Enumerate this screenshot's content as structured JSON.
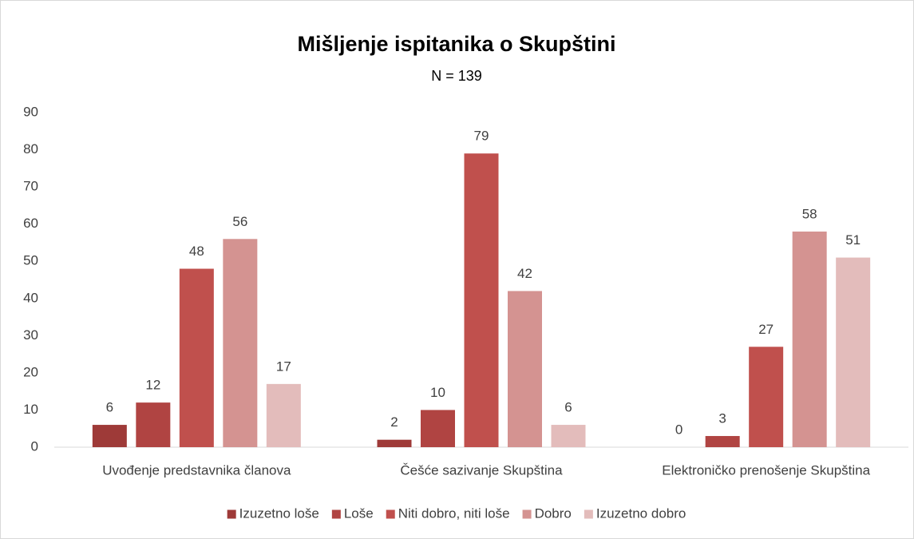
{
  "chart_data": {
    "type": "bar",
    "title": "Mišljenje ispitanika o Skupštini",
    "subtitle": "N = 139",
    "categories": [
      "Uvođenje predstavnika članova",
      "Češće sazivanje Skupština",
      "Elektroničko prenošenje Skupština"
    ],
    "series": [
      {
        "name": "Izuzetno loše",
        "color": "#9e3a38",
        "values": [
          6,
          2,
          0
        ]
      },
      {
        "name": "Loše",
        "color": "#b04442",
        "values": [
          12,
          10,
          3
        ]
      },
      {
        "name": "Niti dobro, niti loše",
        "color": "#c0504d",
        "values": [
          48,
          79,
          27
        ]
      },
      {
        "name": "Dobro",
        "color": "#d49391",
        "values": [
          56,
          42,
          58
        ]
      },
      {
        "name": "Izuzetno dobro",
        "color": "#e3bcbb",
        "values": [
          17,
          6,
          51
        ]
      }
    ],
    "ylim": [
      0,
      90
    ],
    "yticks": [
      0,
      10,
      20,
      30,
      40,
      50,
      60,
      70,
      80,
      90
    ],
    "grid": false,
    "legend": "bottom"
  }
}
